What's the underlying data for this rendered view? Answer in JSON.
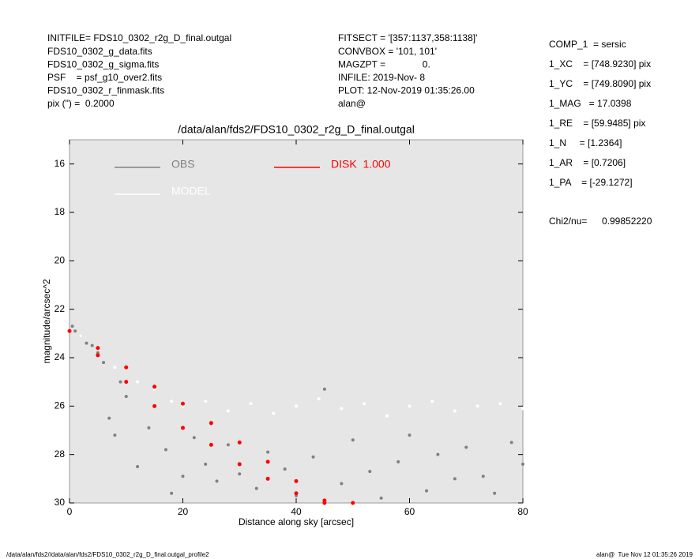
{
  "header": {
    "left": [
      "INITFILE= FDS10_0302_r2g_D_final.outgal",
      "FDS10_0302_g_data.fits",
      "FDS10_0302_g_sigma.fits",
      "PSF    = psf_g10_over2.fits",
      "FDS10_0302_r_finmask.fits",
      "pix (\") =  0.2000"
    ],
    "middle": [
      "FITSECT = '[357:1137,358:1138]'",
      "CONVBOX = '101, 101'",
      "MAGZPT =              0.",
      "INFILE: 2019-Nov- 8",
      "PLOT: 12-Nov-2019 01:35:26.00",
      "alan@"
    ],
    "right": [
      "COMP_1  = sersic",
      "1_XC    = [748.9230] pix",
      "1_YC    = [749.8090] pix",
      "1_MAG   = 17.0398",
      "1_RE    = [59.9485] pix",
      "1_N     = [1.2364]",
      "1_AR    = [0.7206]",
      "1_PA    = [-29.1272]"
    ],
    "chi_label": "Chi2/nu=",
    "chi_value": "0.99852220"
  },
  "footer": {
    "left": "/data/alan/fds2//data/alan/fds2/FDS10_0302_r2g_D_final.outgal_profile2",
    "right": "alan@  Tue Nov 12 01:35:26 2019"
  },
  "chart_data": {
    "type": "scatter",
    "title": "/data/alan/fds2/FDS10_0302_r2g_D_final.outgal",
    "xlabel": "Distance along sky [arcsec]",
    "ylabel": "magnitude/arcsec^2",
    "xlim": [
      0,
      80
    ],
    "xticks": [
      0,
      20,
      40,
      60,
      80
    ],
    "ylim": [
      30,
      15
    ],
    "yticks": [
      16,
      18,
      20,
      22,
      24,
      26,
      28,
      30
    ],
    "legend": "upper left",
    "series": [
      {
        "name": "OBS",
        "color": "#808080",
        "x": [
          0.5,
          1,
          2,
          3,
          4,
          5,
          6,
          7,
          8,
          9,
          10,
          12,
          14,
          15,
          17,
          18,
          20,
          22,
          24,
          26,
          28,
          30,
          33,
          35,
          38,
          40,
          43,
          45,
          48,
          50,
          53,
          55,
          58,
          60,
          63,
          65,
          68,
          70,
          73,
          75,
          78,
          80
        ],
        "values": [
          22.7,
          22.9,
          23.1,
          23.4,
          23.5,
          23.8,
          24.2,
          26.5,
          27.2,
          25.0,
          25.6,
          28.5,
          26.9,
          25.2,
          27.8,
          29.6,
          28.9,
          27.3,
          28.4,
          29.1,
          27.6,
          28.8,
          29.4,
          27.9,
          28.6,
          29.7,
          28.1,
          25.3,
          29.2,
          27.4,
          28.7,
          29.8,
          28.3,
          27.2,
          29.5,
          28.0,
          29.0,
          27.7,
          28.9,
          29.6,
          27.5,
          28.4
        ]
      },
      {
        "name": "MODEL",
        "color": "#ffffff",
        "x": [
          2,
          5,
          8,
          12,
          15,
          18,
          20,
          24,
          28,
          32,
          36,
          40,
          44,
          48,
          52,
          56,
          60,
          64,
          68,
          72,
          76,
          80
        ],
        "values": [
          23.1,
          23.6,
          24.4,
          25.0,
          25.3,
          25.8,
          26.0,
          25.8,
          26.2,
          25.9,
          26.3,
          26.0,
          25.7,
          26.1,
          25.9,
          26.4,
          26.0,
          25.8,
          26.2,
          26.0,
          25.9,
          26.1
        ]
      },
      {
        "name": "DISK  1.000",
        "color": "#ff0000",
        "x": [
          0,
          5,
          5,
          10,
          10,
          15,
          15,
          20,
          20,
          25,
          25,
          30,
          30,
          35,
          35,
          40,
          40,
          45,
          45,
          50
        ],
        "values": [
          22.9,
          23.6,
          23.9,
          24.4,
          25.0,
          25.2,
          26.0,
          25.9,
          26.9,
          26.7,
          27.6,
          27.5,
          28.4,
          28.3,
          29.0,
          29.1,
          29.6,
          29.9,
          30.0,
          30.0
        ]
      }
    ]
  }
}
